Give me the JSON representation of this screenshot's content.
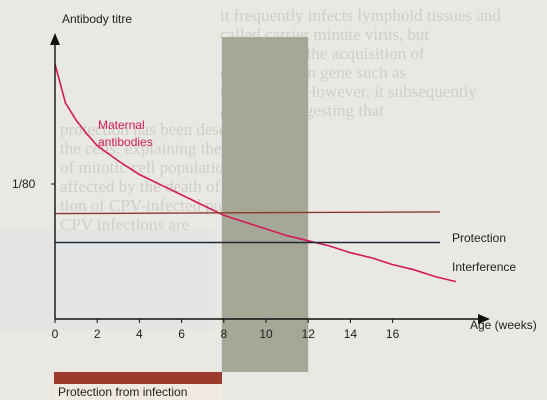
{
  "chart_data": {
    "type": "line",
    "ylabel": "Antibody titre",
    "xlabel": "Age (weeks)",
    "xlim": [
      0,
      20
    ],
    "x_ticks": [
      "0",
      "2",
      "4",
      "6",
      "8",
      "10",
      "12",
      "14",
      "16"
    ],
    "y_tick_label": "1/80",
    "y_tick_value": 80,
    "shaded_window_weeks": [
      8,
      12
    ],
    "series": [
      {
        "name": "Maternal antibodies",
        "color": "#d51a58",
        "x": [
          0,
          0.5,
          1,
          1.5,
          2,
          3,
          4,
          5,
          6,
          7,
          8,
          9,
          10,
          11,
          12,
          13,
          14,
          15,
          16,
          17,
          18,
          19
        ],
        "y": [
          150,
          127,
          117,
          109,
          102,
          93,
          85,
          79,
          73,
          67,
          61,
          57,
          53,
          49,
          46,
          43,
          39,
          36,
          32,
          29,
          25,
          22
        ]
      },
      {
        "name": "Protection",
        "color": "#8b3a2c",
        "x": [
          0,
          20
        ],
        "y": [
          62,
          63
        ]
      },
      {
        "name": "Interference",
        "color": "#1f2a38",
        "x": [
          0,
          20
        ],
        "y": [
          45,
          45
        ]
      }
    ]
  },
  "footer": {
    "protection_label": "Protection from infection",
    "bar_color": "#9a3b2e",
    "bar_extent_weeks": [
      0,
      8
    ]
  },
  "background_text": [
    "it frequently infects lymphoid tissues and",
    "called carrier minute virus, but",
    "from PV. by the acquisition of",
    "capsid protein gene such as",
    "called CPV. However, it subsequently",
    "animals, suggesting that",
    "protection has been described",
    "the cells, explaining the dramatic",
    "of mitotic cell populations",
    "affected by the death of",
    "tion of CPV-infected puppies",
    "CPV infections are"
  ]
}
